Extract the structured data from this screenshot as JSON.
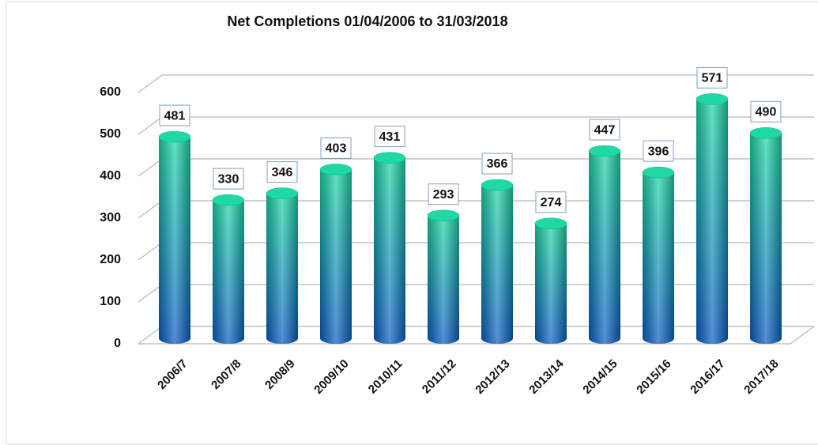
{
  "chart_data": {
    "type": "bar",
    "title": "Net Completions 01/04/2006  to 31/03/2018",
    "categories": [
      "2006/7",
      "2007/8",
      "2008/9",
      "2009/10",
      "2010/11",
      "2011/12",
      "2012/13",
      "2013/14",
      "2014/15",
      "2015/16",
      "2016/17",
      "2017/18"
    ],
    "values": [
      481,
      330,
      346,
      403,
      431,
      293,
      366,
      274,
      447,
      396,
      571,
      490
    ],
    "ylim": [
      0,
      600
    ],
    "yticks": [
      0,
      100,
      200,
      300,
      400,
      500,
      600
    ],
    "grid": true,
    "color": [
      "#1ed9a4",
      "#0a5cc4"
    ]
  }
}
